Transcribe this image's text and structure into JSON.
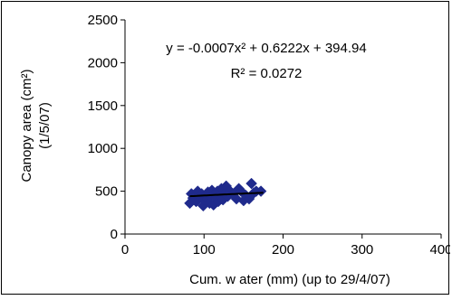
{
  "chart_data": {
    "type": "scatter",
    "xlabel": "Cum. w ater (mm) (up to 29/4/07)",
    "ylabel_line1": "Canopy area (cm²)",
    "ylabel_line2": "(1/5/07)",
    "xlim": [
      0,
      400
    ],
    "ylim": [
      0,
      2500
    ],
    "x_ticks": [
      0,
      100,
      200,
      300,
      400
    ],
    "y_ticks": [
      0,
      500,
      1000,
      1500,
      2000,
      2500
    ],
    "grid": false,
    "equation": "y = -0.0007x² + 0.6222x + 394.94",
    "r_squared": "R² = 0.0272",
    "trendline": {
      "a": -0.0007,
      "b": 0.6222,
      "c": 394.94,
      "x_from": 82,
      "x_to": 175
    },
    "marker_color": "#1f2a8c",
    "trend_color": "#000000",
    "points": [
      {
        "x": 82,
        "y": 360
      },
      {
        "x": 84,
        "y": 470
      },
      {
        "x": 86,
        "y": 420
      },
      {
        "x": 88,
        "y": 400
      },
      {
        "x": 90,
        "y": 380
      },
      {
        "x": 92,
        "y": 500
      },
      {
        "x": 95,
        "y": 430
      },
      {
        "x": 97,
        "y": 470
      },
      {
        "x": 99,
        "y": 330
      },
      {
        "x": 100,
        "y": 400
      },
      {
        "x": 102,
        "y": 450
      },
      {
        "x": 104,
        "y": 410
      },
      {
        "x": 105,
        "y": 490
      },
      {
        "x": 107,
        "y": 360
      },
      {
        "x": 108,
        "y": 440
      },
      {
        "x": 110,
        "y": 510
      },
      {
        "x": 112,
        "y": 340
      },
      {
        "x": 113,
        "y": 470
      },
      {
        "x": 115,
        "y": 420
      },
      {
        "x": 117,
        "y": 500
      },
      {
        "x": 118,
        "y": 380
      },
      {
        "x": 120,
        "y": 450
      },
      {
        "x": 122,
        "y": 530
      },
      {
        "x": 124,
        "y": 400
      },
      {
        "x": 126,
        "y": 470
      },
      {
        "x": 128,
        "y": 560
      },
      {
        "x": 130,
        "y": 440
      },
      {
        "x": 133,
        "y": 500
      },
      {
        "x": 137,
        "y": 470
      },
      {
        "x": 141,
        "y": 410
      },
      {
        "x": 144,
        "y": 530
      },
      {
        "x": 147,
        "y": 500
      },
      {
        "x": 150,
        "y": 390
      },
      {
        "x": 153,
        "y": 450
      },
      {
        "x": 157,
        "y": 410
      },
      {
        "x": 160,
        "y": 590
      },
      {
        "x": 163,
        "y": 480
      },
      {
        "x": 166,
        "y": 500
      },
      {
        "x": 172,
        "y": 500
      }
    ]
  }
}
